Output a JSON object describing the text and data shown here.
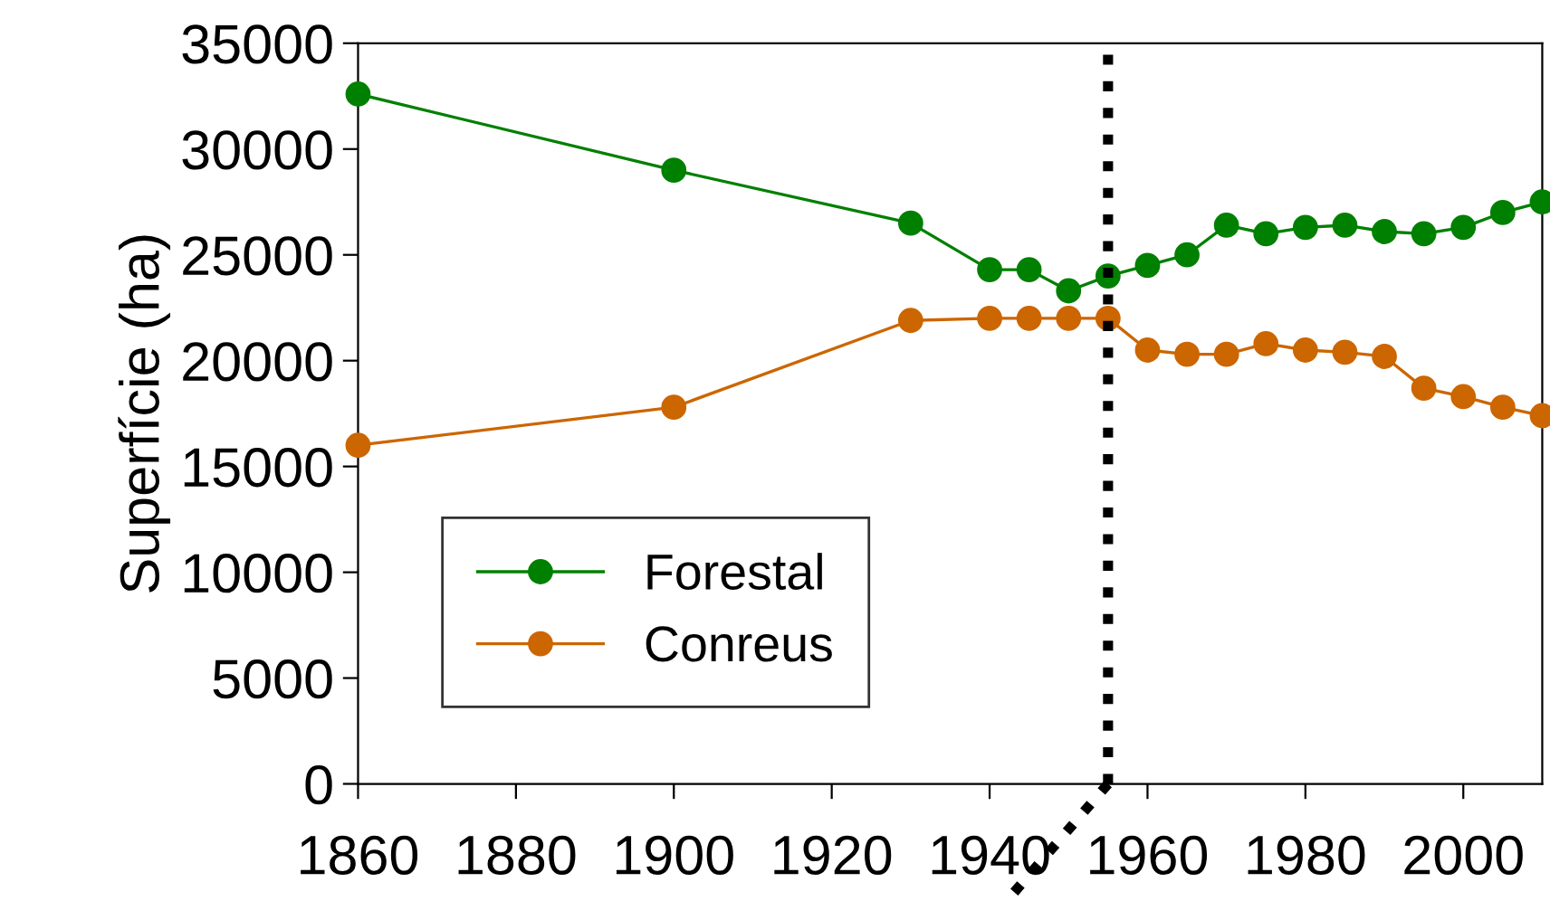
{
  "chart_data": {
    "type": "line",
    "ylabel": "Superfície (ha)",
    "x": [
      1860,
      1900,
      1930,
      1940,
      1945,
      1950,
      1955,
      1960,
      1965,
      1970,
      1975,
      1980,
      1985,
      1990,
      1995,
      2000,
      2005,
      2010
    ],
    "series": [
      {
        "name": "Forestal",
        "color": "#008000",
        "values": [
          32600,
          29000,
          26500,
          24300,
          24300,
          23300,
          24000,
          24500,
          25000,
          26400,
          26000,
          26300,
          26400,
          26100,
          26000,
          26300,
          27000,
          27500
        ]
      },
      {
        "name": "Conreus",
        "color": "#cc6600",
        "values": [
          16000,
          17800,
          21900,
          22000,
          22000,
          22000,
          22000,
          20500,
          20300,
          20300,
          20800,
          20500,
          20400,
          20200,
          18700,
          18300,
          17800,
          17400
        ]
      }
    ],
    "xlim": [
      1860,
      2010
    ],
    "xticks": [
      1860,
      1880,
      1900,
      1920,
      1940,
      1960,
      1980,
      2000
    ],
    "ylim": [
      0,
      35000
    ],
    "yticks": [
      0,
      5000,
      10000,
      15000,
      20000,
      25000,
      30000,
      35000
    ],
    "ref_lines": [
      {
        "axis": "x",
        "value": 1955,
        "color": "#000000",
        "line_style": "dotted"
      }
    ],
    "marker": "circle",
    "line_style": "solid",
    "grid": false,
    "legend": "bottom left"
  }
}
